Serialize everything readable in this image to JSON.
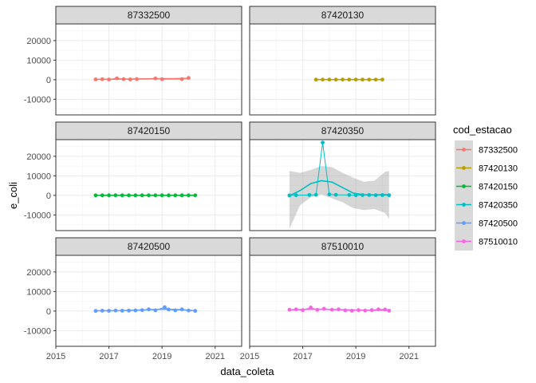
{
  "chart_data": {
    "type": "line",
    "xlabel": "data_coleta",
    "ylabel": "e_coli",
    "xlim": [
      2015,
      2022
    ],
    "ylim": [
      -18000,
      28500
    ],
    "x_ticks": [
      2015,
      2017,
      2019,
      2021
    ],
    "y_ticks": [
      -10000,
      0,
      10000,
      20000
    ],
    "x_tick_labels": [
      "2015",
      "2017",
      "2019",
      "2021"
    ],
    "y_tick_labels": [
      "-10000",
      "0",
      "10000",
      "20000"
    ],
    "grid": true,
    "legend": {
      "title": "cod_estacao",
      "position": "right"
    },
    "facets": [
      {
        "label": "87332500",
        "color": "#F8766D",
        "points": [
          [
            2016.5,
            150
          ],
          [
            2016.75,
            250
          ],
          [
            2017.0,
            80
          ],
          [
            2017.3,
            700
          ],
          [
            2017.55,
            300
          ],
          [
            2017.8,
            150
          ],
          [
            2018.05,
            350
          ],
          [
            2018.75,
            650
          ],
          [
            2019.0,
            250
          ],
          [
            2019.75,
            300
          ],
          [
            2020.0,
            900
          ]
        ],
        "smooth": [
          [
            2016.5,
            150
          ],
          [
            2017.5,
            300
          ],
          [
            2018.5,
            420
          ],
          [
            2019.5,
            560
          ],
          [
            2020.0,
            650
          ]
        ]
      },
      {
        "label": "87420130",
        "color": "#B79F00",
        "points": [
          [
            2017.5,
            50
          ],
          [
            2017.75,
            60
          ],
          [
            2018.0,
            40
          ],
          [
            2018.25,
            50
          ],
          [
            2018.5,
            70
          ],
          [
            2018.75,
            50
          ],
          [
            2019.0,
            60
          ],
          [
            2019.25,
            50
          ],
          [
            2019.5,
            40
          ],
          [
            2019.75,
            50
          ],
          [
            2020.0,
            60
          ]
        ],
        "smooth": [
          [
            2017.5,
            50
          ],
          [
            2020.0,
            55
          ]
        ]
      },
      {
        "label": "87420150",
        "color": "#00BA38",
        "points": [
          [
            2016.5,
            30
          ],
          [
            2016.75,
            40
          ],
          [
            2017.0,
            30
          ],
          [
            2017.25,
            50
          ],
          [
            2017.5,
            30
          ],
          [
            2017.75,
            40
          ],
          [
            2018.0,
            30
          ],
          [
            2018.25,
            40
          ],
          [
            2018.5,
            30
          ],
          [
            2018.75,
            40
          ],
          [
            2019.0,
            30
          ],
          [
            2019.25,
            40
          ],
          [
            2019.5,
            30
          ],
          [
            2019.75,
            40
          ],
          [
            2020.0,
            30
          ],
          [
            2020.25,
            40
          ]
        ],
        "smooth": [
          [
            2016.5,
            35
          ],
          [
            2020.25,
            35
          ]
        ]
      },
      {
        "label": "87420350",
        "color": "#00BFC4",
        "points": [
          [
            2016.5,
            0
          ],
          [
            2016.75,
            100
          ],
          [
            2017.25,
            200
          ],
          [
            2017.5,
            300
          ],
          [
            2017.75,
            27000
          ],
          [
            2018.0,
            500
          ],
          [
            2018.25,
            300
          ],
          [
            2018.75,
            200
          ],
          [
            2019.0,
            100
          ],
          [
            2019.25,
            150
          ],
          [
            2019.5,
            200
          ],
          [
            2019.75,
            100
          ],
          [
            2020.0,
            150
          ],
          [
            2020.25,
            100
          ]
        ],
        "smooth": [
          [
            2016.5,
            -200
          ],
          [
            2016.9,
            2500
          ],
          [
            2017.3,
            6000
          ],
          [
            2017.7,
            7500
          ],
          [
            2018.1,
            6800
          ],
          [
            2018.5,
            4000
          ],
          [
            2018.9,
            1200
          ],
          [
            2019.3,
            300
          ],
          [
            2019.7,
            300
          ],
          [
            2020.1,
            400
          ],
          [
            2020.25,
            300
          ]
        ],
        "ci_upper": [
          [
            2016.5,
            12500
          ],
          [
            2016.9,
            11500
          ],
          [
            2017.3,
            13000
          ],
          [
            2017.7,
            15000
          ],
          [
            2018.1,
            14500
          ],
          [
            2018.5,
            11500
          ],
          [
            2018.9,
            9000
          ],
          [
            2019.3,
            7000
          ],
          [
            2019.7,
            7500
          ],
          [
            2020.1,
            12000
          ],
          [
            2020.25,
            12500
          ]
        ],
        "ci_lower": [
          [
            2016.5,
            -17000
          ],
          [
            2016.9,
            -5000
          ],
          [
            2017.3,
            -1000
          ],
          [
            2017.7,
            500
          ],
          [
            2018.1,
            -1500
          ],
          [
            2018.5,
            -3500
          ],
          [
            2018.9,
            -6500
          ],
          [
            2019.3,
            -7500
          ],
          [
            2019.7,
            -7000
          ],
          [
            2020.1,
            -9000
          ],
          [
            2020.25,
            -12000
          ]
        ]
      },
      {
        "label": "87420500",
        "color": "#619CFF",
        "points": [
          [
            2016.5,
            100
          ],
          [
            2016.75,
            200
          ],
          [
            2017.0,
            150
          ],
          [
            2017.25,
            300
          ],
          [
            2017.5,
            200
          ],
          [
            2017.75,
            250
          ],
          [
            2018.0,
            350
          ],
          [
            2018.25,
            500
          ],
          [
            2018.5,
            900
          ],
          [
            2018.75,
            400
          ],
          [
            2019.1,
            2000
          ],
          [
            2019.25,
            800
          ],
          [
            2019.5,
            400
          ],
          [
            2019.75,
            900
          ],
          [
            2020.0,
            300
          ],
          [
            2020.25,
            100
          ]
        ],
        "smooth": [
          [
            2016.5,
            150
          ],
          [
            2017.5,
            250
          ],
          [
            2018.5,
            700
          ],
          [
            2019.1,
            1000
          ],
          [
            2019.7,
            700
          ],
          [
            2020.25,
            200
          ]
        ]
      },
      {
        "label": "87510010",
        "color": "#F564E3",
        "points": [
          [
            2016.5,
            700
          ],
          [
            2016.75,
            900
          ],
          [
            2017.0,
            500
          ],
          [
            2017.3,
            1800
          ],
          [
            2017.55,
            600
          ],
          [
            2017.8,
            1200
          ],
          [
            2018.1,
            700
          ],
          [
            2018.35,
            900
          ],
          [
            2018.6,
            400
          ],
          [
            2018.85,
            200
          ],
          [
            2019.1,
            500
          ],
          [
            2019.35,
            300
          ],
          [
            2019.6,
            500
          ],
          [
            2019.85,
            900
          ],
          [
            2020.1,
            800
          ],
          [
            2020.25,
            200
          ]
        ],
        "smooth": [
          [
            2016.5,
            600
          ],
          [
            2017.5,
            1000
          ],
          [
            2018.5,
            700
          ],
          [
            2019.5,
            400
          ],
          [
            2020.25,
            500
          ]
        ]
      }
    ]
  }
}
